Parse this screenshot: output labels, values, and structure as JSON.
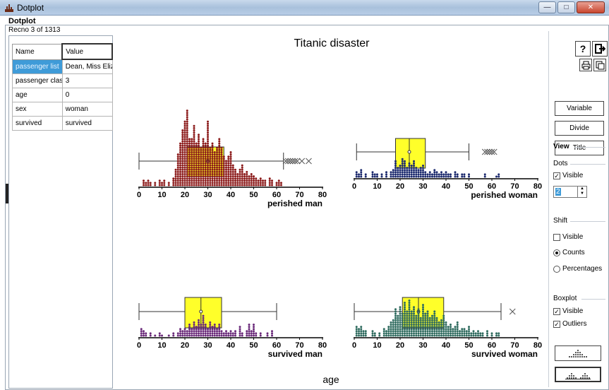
{
  "window": {
    "title": "Dotplot"
  },
  "doc_title": "Dotplot",
  "record": {
    "recno": "Recno 3 of 1313",
    "headers": [
      "Name",
      "Value"
    ],
    "rows": [
      {
        "name": "passenger list",
        "value": "Dean, Miss Elizabeth"
      },
      {
        "name": "passenger class",
        "value": "3"
      },
      {
        "name": "age",
        "value": "0"
      },
      {
        "name": "sex",
        "value": "woman"
      },
      {
        "name": "survived",
        "value": "survived"
      }
    ]
  },
  "colors": {
    "perished_man": "#8b1a1a",
    "perished_woman": "#1c2a6e",
    "survived_man": "#6a2a7a",
    "survived_woman": "#2f6b5f",
    "box": "#ffff2a",
    "selection": "#3f9bd8"
  },
  "chart_data": {
    "type": "dotplot",
    "title": "Titanic disaster",
    "xlabel": "age",
    "x_ticks": [
      0,
      10,
      20,
      30,
      40,
      50,
      60,
      70,
      80
    ],
    "xlim": [
      0,
      80
    ],
    "panels": [
      {
        "name": "perished man",
        "box": {
          "min": 0,
          "q1": 21,
          "median": 30,
          "q3": 37,
          "max": 63
        },
        "outliers": [
          64,
          65,
          66,
          67,
          68,
          69,
          71,
          74
        ],
        "dots": [
          [
            2,
            3
          ],
          [
            3,
            2
          ],
          [
            4,
            3
          ],
          [
            5,
            2
          ],
          [
            7,
            2
          ],
          [
            9,
            3
          ],
          [
            10,
            2
          ],
          [
            11,
            3
          ],
          [
            13,
            2
          ],
          [
            15,
            4
          ],
          [
            16,
            8
          ],
          [
            17,
            15
          ],
          [
            18,
            20
          ],
          [
            19,
            26
          ],
          [
            20,
            30
          ],
          [
            21,
            35
          ],
          [
            22,
            22
          ],
          [
            23,
            22
          ],
          [
            24,
            28
          ],
          [
            25,
            20
          ],
          [
            26,
            24
          ],
          [
            27,
            18
          ],
          [
            28,
            22
          ],
          [
            29,
            20
          ],
          [
            30,
            30
          ],
          [
            31,
            18
          ],
          [
            32,
            20
          ],
          [
            33,
            16
          ],
          [
            34,
            18
          ],
          [
            35,
            22
          ],
          [
            36,
            18
          ],
          [
            37,
            14
          ],
          [
            38,
            12
          ],
          [
            39,
            14
          ],
          [
            40,
            16
          ],
          [
            41,
            10
          ],
          [
            42,
            8
          ],
          [
            43,
            6
          ],
          [
            44,
            8
          ],
          [
            45,
            10
          ],
          [
            46,
            6
          ],
          [
            47,
            7
          ],
          [
            48,
            5
          ],
          [
            49,
            6
          ],
          [
            50,
            5
          ],
          [
            51,
            4
          ],
          [
            52,
            3
          ],
          [
            53,
            4
          ],
          [
            54,
            3
          ],
          [
            55,
            3
          ],
          [
            57,
            4
          ],
          [
            58,
            3
          ],
          [
            60,
            2
          ],
          [
            61,
            3
          ],
          [
            62,
            2
          ]
        ]
      },
      {
        "name": "perished woman",
        "box": {
          "min": 1,
          "q1": 18,
          "median": 24,
          "q3": 31,
          "max": 50
        },
        "outliers": [
          57,
          58,
          59,
          60,
          61
        ],
        "dots": [
          [
            1,
            3
          ],
          [
            2,
            2
          ],
          [
            3,
            4
          ],
          [
            5,
            2
          ],
          [
            8,
            3
          ],
          [
            9,
            2
          ],
          [
            10,
            2
          ],
          [
            12,
            2
          ],
          [
            14,
            3
          ],
          [
            16,
            3
          ],
          [
            17,
            4
          ],
          [
            18,
            8
          ],
          [
            19,
            5
          ],
          [
            20,
            6
          ],
          [
            21,
            9
          ],
          [
            22,
            8
          ],
          [
            23,
            5
          ],
          [
            24,
            7
          ],
          [
            25,
            6
          ],
          [
            26,
            8
          ],
          [
            27,
            5
          ],
          [
            28,
            4
          ],
          [
            29,
            5
          ],
          [
            30,
            6
          ],
          [
            31,
            3
          ],
          [
            32,
            2
          ],
          [
            33,
            3
          ],
          [
            34,
            2
          ],
          [
            35,
            4
          ],
          [
            36,
            3
          ],
          [
            37,
            2
          ],
          [
            38,
            3
          ],
          [
            39,
            2
          ],
          [
            40,
            3
          ],
          [
            41,
            2
          ],
          [
            42,
            2
          ],
          [
            44,
            3
          ],
          [
            45,
            2
          ],
          [
            47,
            2
          ],
          [
            48,
            2
          ],
          [
            50,
            2
          ],
          [
            57,
            2
          ],
          [
            62,
            1
          ],
          [
            63,
            2
          ]
        ]
      },
      {
        "name": "survived man",
        "box": {
          "min": 0,
          "q1": 20,
          "median": 27,
          "q3": 36,
          "max": 60
        },
        "outliers": [],
        "dots": [
          [
            1,
            4
          ],
          [
            2,
            3
          ],
          [
            3,
            2
          ],
          [
            5,
            2
          ],
          [
            7,
            1
          ],
          [
            9,
            2
          ],
          [
            10,
            1
          ],
          [
            13,
            1
          ],
          [
            15,
            2
          ],
          [
            17,
            2
          ],
          [
            18,
            4
          ],
          [
            19,
            3
          ],
          [
            20,
            4
          ],
          [
            21,
            3
          ],
          [
            22,
            6
          ],
          [
            23,
            4
          ],
          [
            24,
            7
          ],
          [
            25,
            5
          ],
          [
            26,
            8
          ],
          [
            27,
            6
          ],
          [
            28,
            10
          ],
          [
            29,
            6
          ],
          [
            30,
            4
          ],
          [
            31,
            7
          ],
          [
            32,
            5
          ],
          [
            33,
            6
          ],
          [
            34,
            4
          ],
          [
            35,
            6
          ],
          [
            36,
            3
          ],
          [
            37,
            2
          ],
          [
            38,
            3
          ],
          [
            39,
            2
          ],
          [
            40,
            3
          ],
          [
            41,
            2
          ],
          [
            42,
            3
          ],
          [
            44,
            5
          ],
          [
            45,
            2
          ],
          [
            47,
            3
          ],
          [
            48,
            6
          ],
          [
            49,
            3
          ],
          [
            50,
            6
          ],
          [
            51,
            2
          ],
          [
            53,
            2
          ],
          [
            56,
            2
          ],
          [
            58,
            3
          ]
        ]
      },
      {
        "name": "survived woman",
        "box": {
          "min": 0,
          "q1": 21,
          "median": 28,
          "q3": 39,
          "max": 64
        },
        "outliers": [
          69
        ],
        "dots": [
          [
            1,
            5
          ],
          [
            2,
            4
          ],
          [
            3,
            5
          ],
          [
            4,
            3
          ],
          [
            5,
            3
          ],
          [
            8,
            3
          ],
          [
            9,
            2
          ],
          [
            11,
            2
          ],
          [
            13,
            4
          ],
          [
            14,
            3
          ],
          [
            15,
            5
          ],
          [
            16,
            7
          ],
          [
            17,
            8
          ],
          [
            18,
            13
          ],
          [
            19,
            10
          ],
          [
            20,
            14
          ],
          [
            21,
            11
          ],
          [
            22,
            16
          ],
          [
            23,
            12
          ],
          [
            24,
            17
          ],
          [
            25,
            12
          ],
          [
            26,
            14
          ],
          [
            27,
            10
          ],
          [
            28,
            13
          ],
          [
            29,
            9
          ],
          [
            30,
            15
          ],
          [
            31,
            11
          ],
          [
            32,
            12
          ],
          [
            33,
            9
          ],
          [
            34,
            10
          ],
          [
            35,
            12
          ],
          [
            36,
            9
          ],
          [
            37,
            7
          ],
          [
            38,
            8
          ],
          [
            39,
            10
          ],
          [
            40,
            7
          ],
          [
            41,
            5
          ],
          [
            42,
            6
          ],
          [
            43,
            4
          ],
          [
            44,
            5
          ],
          [
            45,
            7
          ],
          [
            46,
            3
          ],
          [
            47,
            4
          ],
          [
            48,
            4
          ],
          [
            49,
            3
          ],
          [
            50,
            5
          ],
          [
            51,
            2
          ],
          [
            52,
            3
          ],
          [
            53,
            2
          ],
          [
            54,
            3
          ],
          [
            55,
            2
          ],
          [
            56,
            2
          ],
          [
            58,
            3
          ],
          [
            60,
            2
          ],
          [
            62,
            2
          ],
          [
            63,
            2
          ]
        ]
      }
    ]
  },
  "toolbar": {
    "help_icon": "question-icon",
    "exit_icon": "exit-icon",
    "print_icon": "printer-icon",
    "copy_icon": "copy-icon",
    "variable_label": "Variable",
    "divide_label": "Divide",
    "title_label": "Title"
  },
  "view": {
    "heading": "View",
    "dots_heading": "Dots",
    "dots_visible_label": "Visible",
    "dots_visible": true,
    "dot_size": "2",
    "shift_heading": "Shift",
    "shift_visible_label": "Visible",
    "shift_visible": false,
    "counts_label": "Counts",
    "percentages_label": "Percentages",
    "shift_mode": "Counts",
    "boxplot_heading": "Boxplot",
    "box_visible_label": "Visible",
    "box_visible": true,
    "outliers_label": "Outliers",
    "outliers_visible": true
  },
  "view_buttons": [
    "stacked-dots-icon",
    "split-dots-icon"
  ]
}
